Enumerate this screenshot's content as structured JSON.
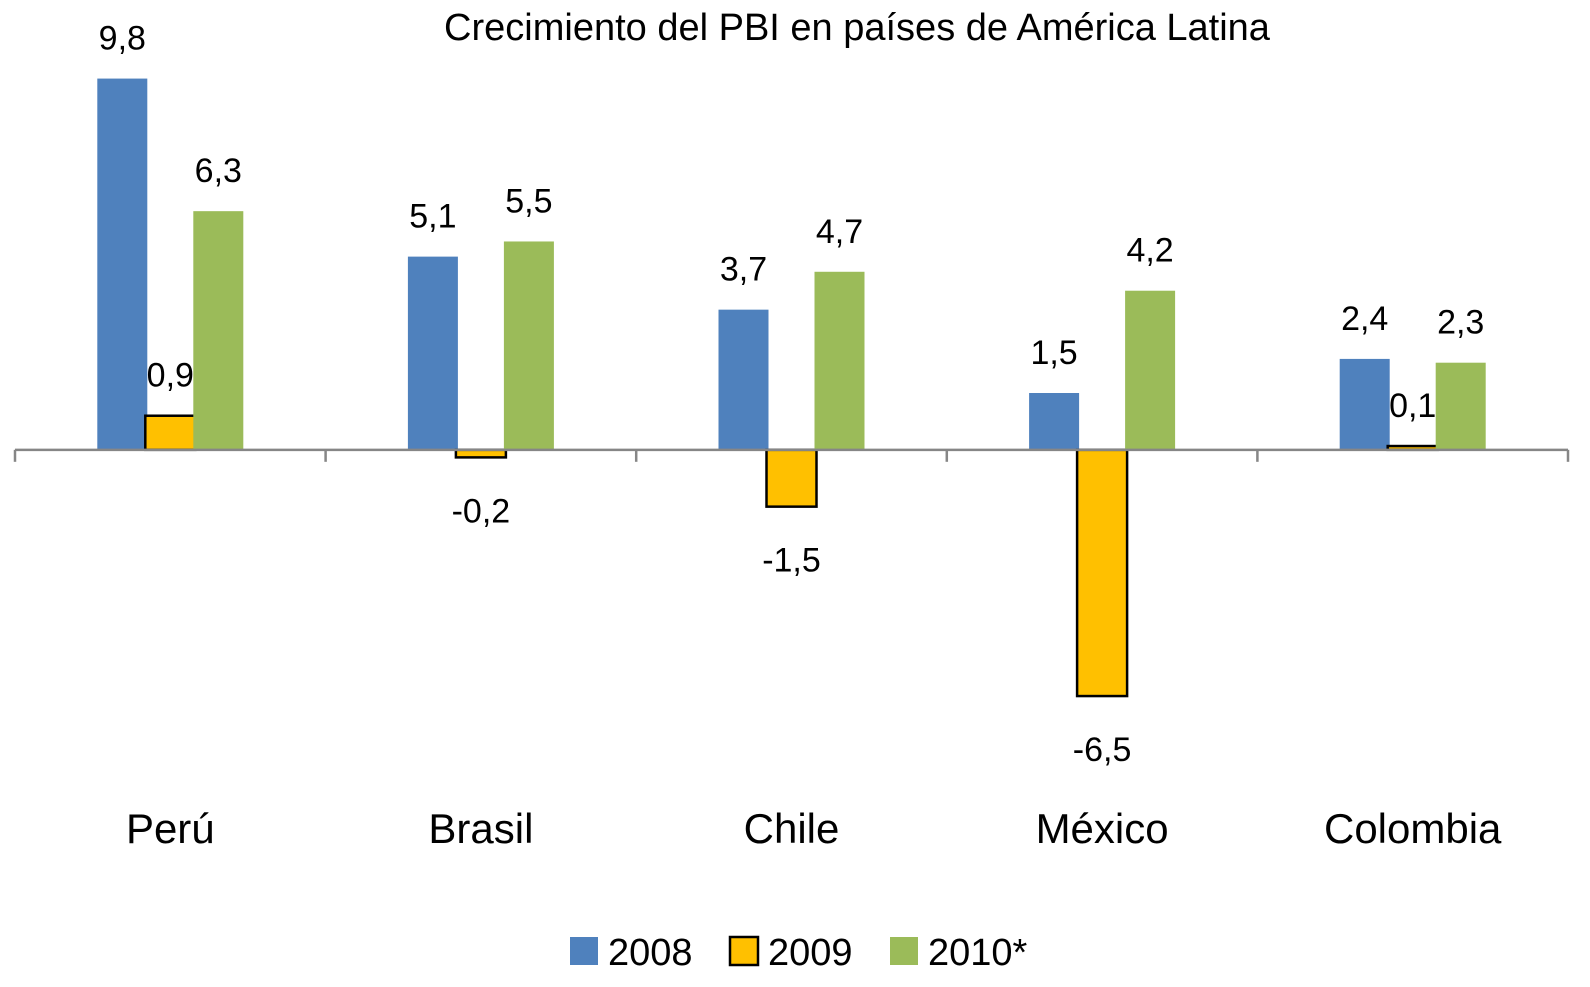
{
  "chart_data": {
    "type": "bar",
    "title": "Crecimiento del PBI en países de América Latina",
    "categories": [
      "Perú",
      "Brasil",
      "Chile",
      "México",
      "Colombia"
    ],
    "series": [
      {
        "name": "2008",
        "color": "#4f81bd",
        "values": [
          9.8,
          5.1,
          3.7,
          1.5,
          2.4
        ],
        "value_labels": [
          "9,8",
          "5,1",
          "3,7",
          "1,5",
          "2,4"
        ]
      },
      {
        "name": "2009",
        "color": "#ffc000",
        "edgecolor": "#000000",
        "values": [
          0.9,
          -0.2,
          -1.5,
          -6.5,
          0.1
        ],
        "value_labels": [
          "0,9",
          "-0,2",
          "-1,5",
          "-6,5",
          "0,1"
        ]
      },
      {
        "name": "2010*",
        "color": "#9bbb59",
        "values": [
          6.3,
          5.5,
          4.7,
          4.2,
          2.3
        ],
        "value_labels": [
          "6,3",
          "5,5",
          "4,7",
          "4,2",
          "2,3"
        ]
      }
    ],
    "ylim": [
      -7,
      10
    ],
    "legend": "bottom"
  }
}
